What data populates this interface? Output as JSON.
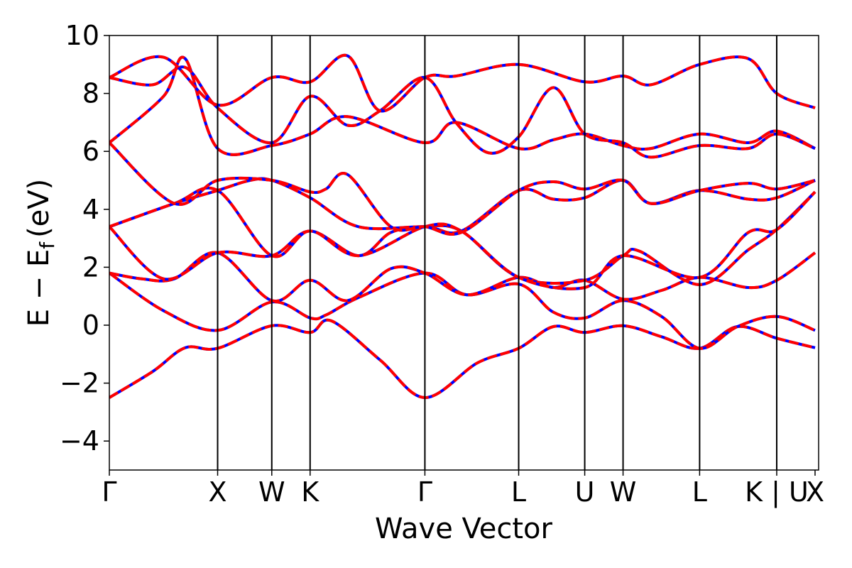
{
  "chart_data": {
    "type": "line",
    "xlabel": "Wave Vector",
    "ylabel": "E − E",
    "ylabel_sub": "f",
    "ylabel_unit": "(eV)",
    "ylim": [
      -5,
      10
    ],
    "yticks": [
      -4,
      -2,
      0,
      2,
      4,
      6,
      8,
      10
    ],
    "ytick_labels": [
      "−4",
      "−2",
      "0",
      "2",
      "4",
      "6",
      "8",
      "10"
    ],
    "xlim": [
      0,
      6.55
    ],
    "kpoints": [
      {
        "label": "Γ",
        "x": 0.0
      },
      {
        "label": "X",
        "x": 1.0
      },
      {
        "label": "W",
        "x": 1.5
      },
      {
        "label": "K",
        "x": 1.854
      },
      {
        "label": "Γ",
        "x": 2.914
      },
      {
        "label": "L",
        "x": 3.78
      },
      {
        "label": "U",
        "x": 4.39
      },
      {
        "label": "W",
        "x": 4.744
      },
      {
        "label": "L",
        "x": 5.451
      },
      {
        "label": "K | U",
        "x": 6.163
      },
      {
        "label": "X",
        "x": 6.517
      }
    ],
    "grid": false,
    "series_style": [
      {
        "color": "#0000ff",
        "style": "solid"
      },
      {
        "color": "#ff0000",
        "style": "dashed"
      }
    ],
    "bands": [
      [
        [
          0,
          -2.5
        ],
        [
          0.4,
          -1.6
        ],
        [
          0.7,
          -0.78
        ],
        [
          1.0,
          -0.8
        ],
        [
          1.5,
          -0.02
        ],
        [
          1.854,
          -0.25
        ],
        [
          2.05,
          0.15
        ],
        [
          2.5,
          -1.2
        ],
        [
          2.914,
          -2.5
        ],
        [
          3.4,
          -1.3
        ],
        [
          3.78,
          -0.8
        ],
        [
          4.1,
          -0.05
        ],
        [
          4.39,
          -0.25
        ],
        [
          4.744,
          -0.02
        ],
        [
          5.1,
          -0.4
        ],
        [
          5.451,
          -0.8
        ],
        [
          5.8,
          -0.05
        ],
        [
          6.163,
          -0.45
        ],
        [
          6.517,
          -0.78
        ]
      ],
      [
        [
          0,
          1.8
        ],
        [
          0.5,
          0.5
        ],
        [
          1.0,
          -0.18
        ],
        [
          1.5,
          0.8
        ],
        [
          1.854,
          0.25
        ],
        [
          2.0,
          0.35
        ],
        [
          2.3,
          0.95
        ],
        [
          2.914,
          1.8
        ],
        [
          3.3,
          1.05
        ],
        [
          3.78,
          1.42
        ],
        [
          4.1,
          0.45
        ],
        [
          4.39,
          0.25
        ],
        [
          4.744,
          0.85
        ],
        [
          5.1,
          0.3
        ],
        [
          5.451,
          -0.8
        ],
        [
          5.8,
          -0.05
        ],
        [
          6.163,
          0.3
        ],
        [
          6.517,
          -0.18
        ]
      ],
      [
        [
          0,
          1.8
        ],
        [
          0.3,
          1.6
        ],
        [
          0.6,
          1.6
        ],
        [
          1.0,
          2.5
        ],
        [
          1.5,
          0.85
        ],
        [
          1.854,
          1.55
        ],
        [
          2.2,
          0.85
        ],
        [
          2.6,
          1.95
        ],
        [
          2.914,
          1.8
        ],
        [
          3.3,
          1.05
        ],
        [
          3.78,
          1.65
        ],
        [
          4.1,
          1.3
        ],
        [
          4.39,
          1.55
        ],
        [
          4.744,
          0.9
        ],
        [
          5.1,
          1.2
        ],
        [
          5.451,
          1.65
        ],
        [
          5.9,
          1.3
        ],
        [
          6.163,
          1.55
        ],
        [
          6.517,
          2.5
        ]
      ],
      [
        [
          0,
          3.4
        ],
        [
          0.5,
          1.6
        ],
        [
          1.0,
          2.5
        ],
        [
          1.5,
          2.4
        ],
        [
          1.854,
          3.25
        ],
        [
          2.3,
          2.4
        ],
        [
          2.6,
          3.2
        ],
        [
          2.914,
          3.4
        ],
        [
          3.25,
          3.25
        ],
        [
          3.78,
          1.65
        ],
        [
          4.39,
          1.55
        ],
        [
          4.744,
          2.4
        ],
        [
          4.9,
          2.55
        ],
        [
          5.451,
          1.4
        ],
        [
          5.9,
          2.6
        ],
        [
          6.163,
          3.3
        ],
        [
          6.517,
          4.6
        ]
      ],
      [
        [
          0,
          3.4
        ],
        [
          0.6,
          4.2
        ],
        [
          1.0,
          4.65
        ],
        [
          1.5,
          2.4
        ],
        [
          1.854,
          3.25
        ],
        [
          2.3,
          2.4
        ],
        [
          2.914,
          3.4
        ],
        [
          3.25,
          3.25
        ],
        [
          3.78,
          1.65
        ],
        [
          4.39,
          1.3
        ],
        [
          4.744,
          2.4
        ],
        [
          5.451,
          1.65
        ],
        [
          5.9,
          3.2
        ],
        [
          6.163,
          3.3
        ],
        [
          6.517,
          4.6
        ]
      ],
      [
        [
          0,
          3.4
        ],
        [
          0.6,
          4.2
        ],
        [
          1.0,
          4.65
        ],
        [
          1.3,
          5.0
        ],
        [
          1.5,
          5.0
        ],
        [
          1.854,
          4.4
        ],
        [
          2.3,
          3.4
        ],
        [
          2.914,
          3.4
        ],
        [
          3.25,
          3.25
        ],
        [
          3.78,
          4.65
        ],
        [
          4.1,
          4.35
        ],
        [
          4.39,
          4.4
        ],
        [
          4.744,
          5.0
        ],
        [
          5.0,
          4.2
        ],
        [
          5.451,
          4.65
        ],
        [
          5.9,
          4.35
        ],
        [
          6.163,
          4.4
        ],
        [
          6.517,
          5.0
        ]
      ],
      [
        [
          0,
          6.3
        ],
        [
          0.6,
          4.2
        ],
        [
          1.0,
          5.0
        ],
        [
          1.5,
          5.0
        ],
        [
          1.854,
          4.6
        ],
        [
          2.0,
          4.7
        ],
        [
          2.2,
          5.2
        ],
        [
          2.6,
          3.4
        ],
        [
          2.914,
          3.4
        ],
        [
          3.25,
          3.2
        ],
        [
          3.78,
          4.65
        ],
        [
          4.1,
          4.95
        ],
        [
          4.39,
          4.7
        ],
        [
          4.744,
          5.0
        ],
        [
          5.0,
          4.2
        ],
        [
          5.451,
          4.65
        ],
        [
          5.9,
          4.9
        ],
        [
          6.163,
          4.7
        ],
        [
          6.517,
          5.0
        ]
      ],
      [
        [
          0,
          6.3
        ],
        [
          0.5,
          7.9
        ],
        [
          0.7,
          9.2
        ],
        [
          1.0,
          6.1
        ],
        [
          1.5,
          6.2
        ],
        [
          1.854,
          6.6
        ],
        [
          2.2,
          7.2
        ],
        [
          2.914,
          6.3
        ],
        [
          3.2,
          7.0
        ],
        [
          3.78,
          6.1
        ],
        [
          4.1,
          6.4
        ],
        [
          4.39,
          6.6
        ],
        [
          4.744,
          6.2
        ],
        [
          5.0,
          6.1
        ],
        [
          5.451,
          6.6
        ],
        [
          5.9,
          6.3
        ],
        [
          6.163,
          6.7
        ],
        [
          6.517,
          6.1
        ]
      ],
      [
        [
          0,
          8.55
        ],
        [
          0.4,
          8.3
        ],
        [
          0.7,
          8.9
        ],
        [
          1.0,
          7.5
        ],
        [
          1.5,
          6.3
        ],
        [
          1.854,
          7.9
        ],
        [
          2.2,
          6.9
        ],
        [
          2.5,
          7.4
        ],
        [
          2.914,
          8.55
        ],
        [
          3.2,
          7.0
        ],
        [
          3.5,
          5.95
        ],
        [
          3.78,
          6.5
        ],
        [
          4.1,
          8.2
        ],
        [
          4.39,
          6.6
        ],
        [
          4.744,
          6.3
        ],
        [
          5.0,
          5.8
        ],
        [
          5.451,
          6.2
        ],
        [
          5.9,
          6.1
        ],
        [
          6.163,
          6.6
        ],
        [
          6.517,
          6.1
        ]
      ],
      [
        [
          0,
          8.55
        ],
        [
          0.5,
          9.25
        ],
        [
          1.0,
          7.6
        ],
        [
          1.5,
          8.55
        ],
        [
          1.854,
          8.4
        ],
        [
          2.2,
          9.3
        ],
        [
          2.5,
          7.4
        ],
        [
          2.914,
          8.55
        ],
        [
          3.2,
          8.6
        ],
        [
          3.78,
          9.0
        ],
        [
          4.39,
          8.4
        ],
        [
          4.744,
          8.6
        ],
        [
          5.0,
          8.3
        ],
        [
          5.451,
          9.0
        ],
        [
          5.9,
          9.2
        ],
        [
          6.163,
          8.0
        ],
        [
          6.517,
          7.5
        ]
      ]
    ]
  }
}
